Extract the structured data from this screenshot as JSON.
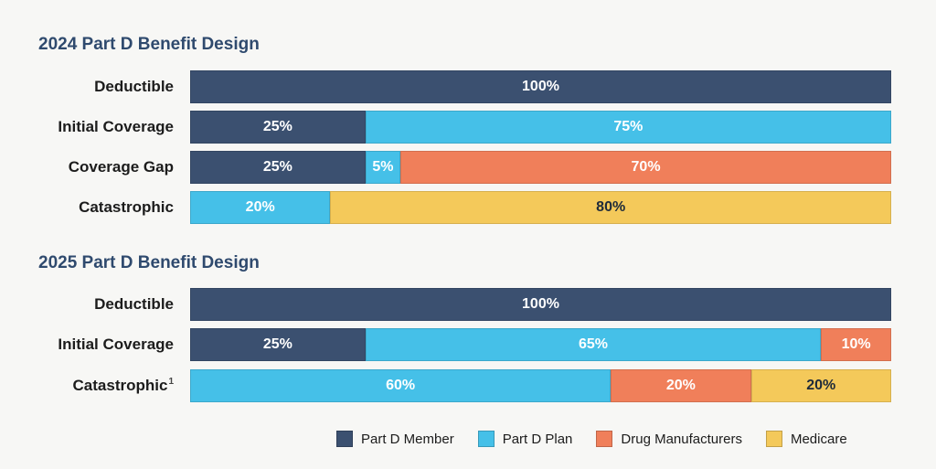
{
  "colors": {
    "member": "#3b5070",
    "plan": "#45c0e8",
    "manufacturers": "#f07f5a",
    "medicare": "#f4c95a"
  },
  "legend": [
    {
      "key": "member",
      "label": "Part D Member"
    },
    {
      "key": "plan",
      "label": "Part D Plan"
    },
    {
      "key": "manufacturers",
      "label": "Drug Manufacturers"
    },
    {
      "key": "medicare",
      "label": "Medicare"
    }
  ],
  "chart_data": [
    {
      "type": "bar",
      "orientation": "horizontal-stacked-100",
      "title": "2024 Part D Benefit Design",
      "rows": [
        {
          "label": "Deductible",
          "footnote": "",
          "segments": [
            {
              "series": "member",
              "value": 100,
              "label": "100%"
            }
          ]
        },
        {
          "label": "Initial Coverage",
          "footnote": "",
          "segments": [
            {
              "series": "member",
              "value": 25,
              "label": "25%"
            },
            {
              "series": "plan",
              "value": 75,
              "label": "75%"
            }
          ]
        },
        {
          "label": "Coverage Gap",
          "footnote": "",
          "segments": [
            {
              "series": "member",
              "value": 25,
              "label": "25%"
            },
            {
              "series": "plan",
              "value": 5,
              "label": "5%"
            },
            {
              "series": "manufacturers",
              "value": 70,
              "label": "70%"
            }
          ]
        },
        {
          "label": "Catastrophic",
          "footnote": "",
          "segments": [
            {
              "series": "plan",
              "value": 20,
              "label": "20%"
            },
            {
              "series": "medicare",
              "value": 80,
              "label": "80%"
            }
          ]
        }
      ]
    },
    {
      "type": "bar",
      "orientation": "horizontal-stacked-100",
      "title": "2025 Part D Benefit Design",
      "rows": [
        {
          "label": "Deductible",
          "footnote": "",
          "segments": [
            {
              "series": "member",
              "value": 100,
              "label": "100%"
            }
          ]
        },
        {
          "label": "Initial Coverage",
          "footnote": "",
          "segments": [
            {
              "series": "member",
              "value": 25,
              "label": "25%"
            },
            {
              "series": "plan",
              "value": 65,
              "label": "65%"
            },
            {
              "series": "manufacturers",
              "value": 10,
              "label": "10%"
            }
          ]
        },
        {
          "label": "Catastrophic",
          "footnote": "1",
          "segments": [
            {
              "series": "plan",
              "value": 60,
              "label": "60%"
            },
            {
              "series": "manufacturers",
              "value": 20,
              "label": "20%"
            },
            {
              "series": "medicare",
              "value": 20,
              "label": "20%"
            }
          ]
        }
      ]
    }
  ]
}
